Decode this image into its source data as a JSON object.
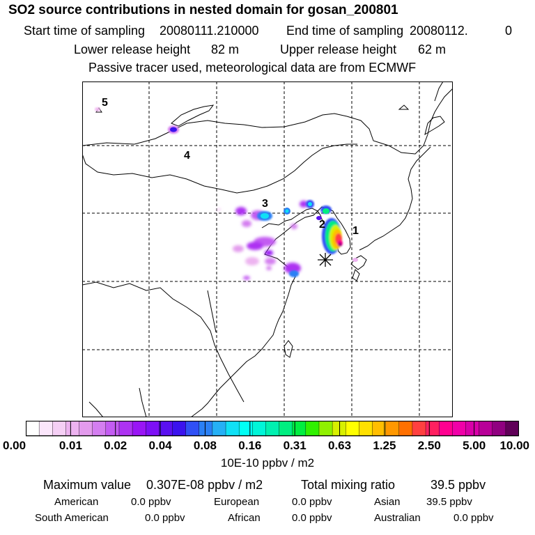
{
  "header": {
    "title": "SO2 source contributions in nested domain for gosan_200801",
    "start_label": "Start time of sampling",
    "start_value": "20080111.210000",
    "end_label": "End time of sampling",
    "end_value": "20080112.",
    "end_suffix": "0",
    "lower_label": "Lower release height",
    "lower_value": "82 m",
    "upper_label": "Upper release height",
    "upper_value": "62 m",
    "note": "Passive tracer used, meteorological data are from ECMWF"
  },
  "map": {
    "region_labels": [
      "1",
      "2",
      "3",
      "4",
      "5"
    ],
    "receptor_symbol": "*"
  },
  "colorbar": {
    "tick_labels": [
      "0.00",
      "0.01",
      "0.02",
      "0.04",
      "0.08",
      "0.16",
      "0.31",
      "0.63",
      "1.25",
      "2.50",
      "5.00",
      "10.00"
    ],
    "unit": "10E-10 ppbv / m2",
    "colors": [
      "#ffffff",
      "#fbe6fb",
      "#f5cff5",
      "#edb3f0",
      "#e39bed",
      "#d47ef0",
      "#c35cf2",
      "#ad33f2",
      "#9915f5",
      "#7d10f5",
      "#5a10f0",
      "#3b12ee",
      "#3050f5",
      "#2a80f5",
      "#25b0f5",
      "#10e0f5",
      "#00fff5",
      "#00f5d8",
      "#00f0b0",
      "#00ee80",
      "#00ee40",
      "#30f000",
      "#90f000",
      "#d8f000",
      "#ffff00",
      "#ffe000",
      "#ffbe00",
      "#ff9800",
      "#ff7000",
      "#ff4040",
      "#ff2060",
      "#ff0090",
      "#f000a8",
      "#d800a8",
      "#b80098",
      "#900080",
      "#600058"
    ]
  },
  "summary": {
    "max_label": "Maximum value",
    "max_value": "0.307E-08 ppbv / m2",
    "total_label": "Total mixing ratio",
    "total_value": "39.5 ppbv",
    "regions": [
      {
        "name": "American",
        "value": "0.0 ppbv"
      },
      {
        "name": "European",
        "value": "0.0 ppbv"
      },
      {
        "name": "Asian",
        "value": "39.5 ppbv"
      },
      {
        "name": "South American",
        "value": "0.0 ppbv"
      },
      {
        "name": "African",
        "value": "0.0 ppbv"
      },
      {
        "name": "Australian",
        "value": "0.0 ppbv"
      }
    ]
  }
}
